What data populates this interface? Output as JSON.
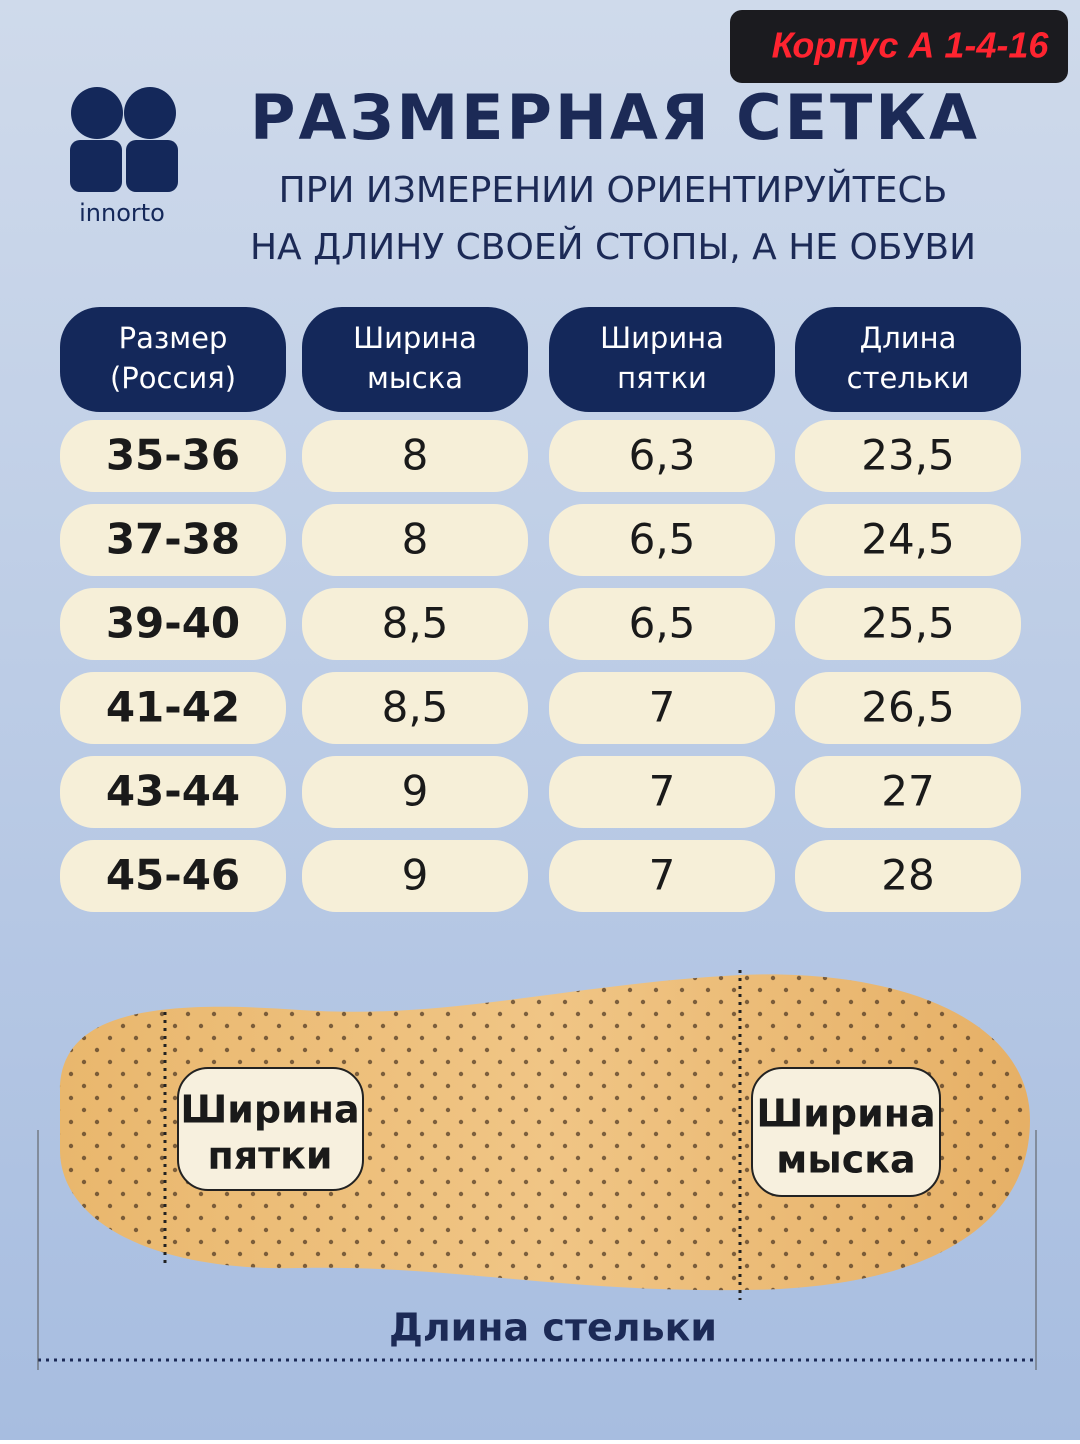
{
  "badge": "Корпус А 1-4-16",
  "brand": "innorto",
  "header": {
    "title": "РАЗМЕРНАЯ СЕТКА",
    "subtitle": [
      "ПРИ ИЗМЕРЕНИИ ОРИЕНТИРУЙТЕСЬ",
      "НА ДЛИНУ СВОЕЙ СТОПЫ, А НЕ ОБУВИ"
    ]
  },
  "table": {
    "columns": [
      [
        "Размер",
        "(Россия)"
      ],
      [
        "Ширина",
        "мыска"
      ],
      [
        "Ширина",
        "пятки"
      ],
      [
        "Длина",
        "стельки"
      ]
    ],
    "rows": [
      [
        "35-36",
        "8",
        "6,3",
        "23,5"
      ],
      [
        "37-38",
        "8",
        "6,5",
        "24,5"
      ],
      [
        "39-40",
        "8,5",
        "6,5",
        "25,5"
      ],
      [
        "41-42",
        "8,5",
        "7",
        "26,5"
      ],
      [
        "43-44",
        "9",
        "7",
        "27"
      ],
      [
        "45-46",
        "9",
        "7",
        "28"
      ]
    ]
  },
  "insole": {
    "heel_label": [
      "Ширина",
      "пятки"
    ],
    "toe_label": [
      "Ширина",
      "мыска"
    ],
    "length_label": "Длина стельки"
  }
}
